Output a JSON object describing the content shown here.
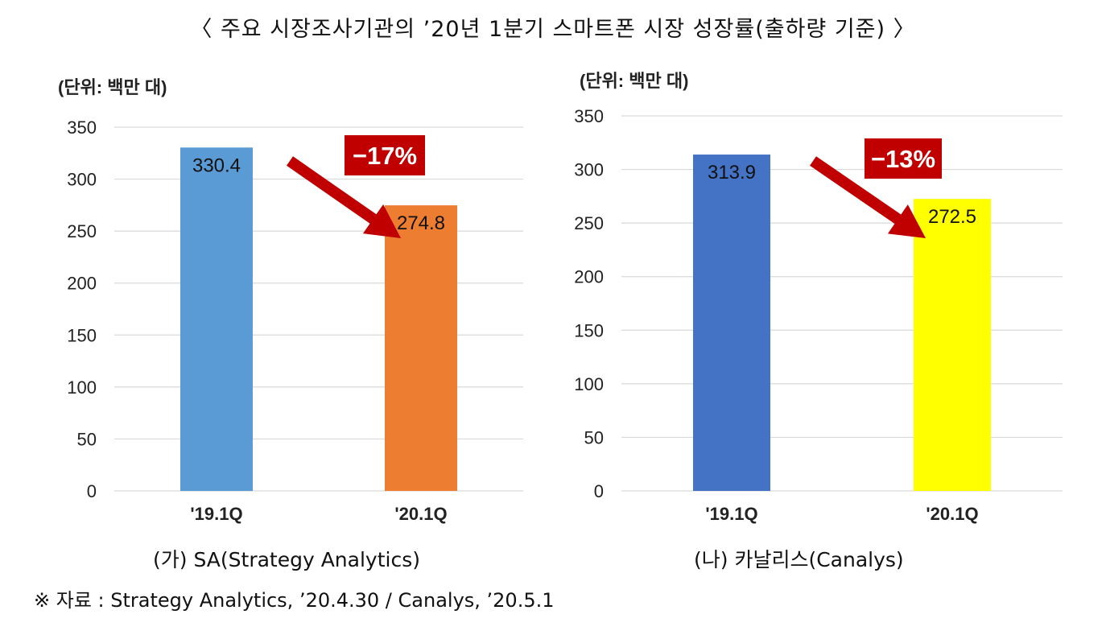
{
  "title": "〈 주요 시장조사기관의 ’20년 1분기 스마트폰 시장 성장률(출하량 기준) 〉",
  "chart_data": [
    {
      "type": "bar",
      "unit_label": "(단위: 백만 대)",
      "categories": [
        "'19.1Q",
        "'20.1Q"
      ],
      "values": [
        330.4,
        274.8
      ],
      "value_labels": [
        "330.4",
        "274.8"
      ],
      "bar_colors": [
        "#5b9bd5",
        "#ed7d31"
      ],
      "ylim": [
        0,
        350
      ],
      "yticks": [
        0,
        50,
        100,
        150,
        200,
        250,
        300,
        350
      ],
      "grid": true,
      "change_label": "−17%",
      "change_color": "#c00000",
      "caption": "(가) SA(Strategy Analytics)"
    },
    {
      "type": "bar",
      "unit_label": "(단위: 백만 대)",
      "categories": [
        "'19.1Q",
        "'20.1Q"
      ],
      "values": [
        313.9,
        272.5
      ],
      "value_labels": [
        "313.9",
        "272.5"
      ],
      "bar_colors": [
        "#4472c4",
        "#ffff00"
      ],
      "ylim": [
        0,
        350
      ],
      "yticks": [
        0,
        50,
        100,
        150,
        200,
        250,
        300,
        350
      ],
      "grid": true,
      "change_label": "−13%",
      "change_color": "#c00000",
      "caption": "(나) 카날리스(Canalys)"
    }
  ],
  "source": "※ 자료 : Strategy Analytics, ’20.4.30 / Canalys, ’20.5.1"
}
